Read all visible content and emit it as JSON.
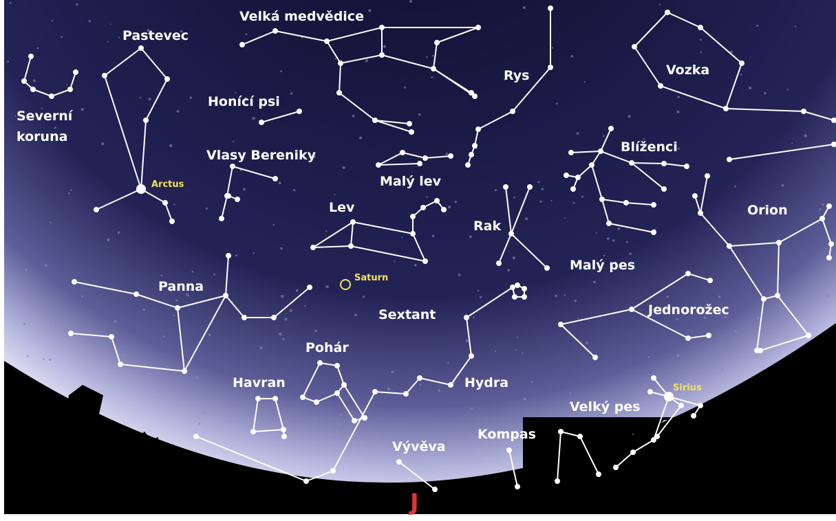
{
  "constellations": [
    "Velká medvědice",
    "Pastevec",
    [
      "Severní",
      "koruna"
    ],
    "Honící psi",
    "Vlasy Bereniky",
    "Malý lev",
    "Lev",
    "Rak",
    "Rys",
    "Vozka",
    "Blíženci",
    "Orion",
    "Malý pes",
    "Jednorožec",
    "Panna",
    "Sextant",
    "Pohár",
    "Havran",
    "Hydra",
    "Velký pes",
    "Kompas",
    "Vývěva"
  ],
  "stars": [
    "Arctus",
    "Saturn",
    "Sirius"
  ],
  "direction": "J"
}
